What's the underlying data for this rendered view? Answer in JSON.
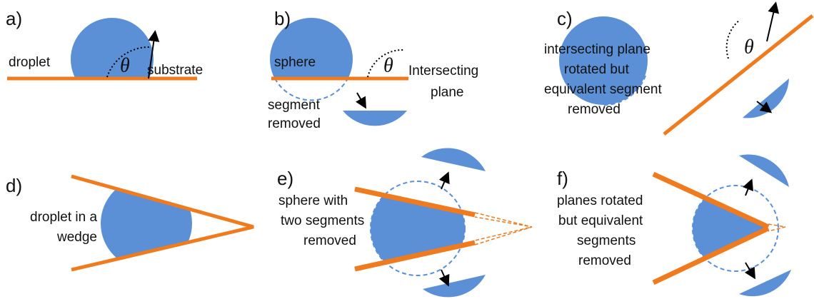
{
  "panels": [
    {
      "label": "a)",
      "texts": [
        "droplet",
        "θ",
        "substrate"
      ]
    },
    {
      "label": "b)",
      "texts": [
        "sphere",
        "θ",
        "Intersecting",
        "plane",
        "segment",
        "removed"
      ]
    },
    {
      "label": "c)",
      "texts": [
        "θ",
        "intersecting plane",
        "rotated but",
        "equivalent segment",
        "removed"
      ]
    },
    {
      "label": "d)",
      "texts": [
        "droplet in a",
        "wedge"
      ]
    },
    {
      "label": "e)",
      "texts": [
        "sphere with",
        "two segments",
        "removed"
      ]
    },
    {
      "label": "f)",
      "texts": [
        "planes rotated",
        "but equivalent",
        "segments",
        "removed"
      ]
    }
  ]
}
